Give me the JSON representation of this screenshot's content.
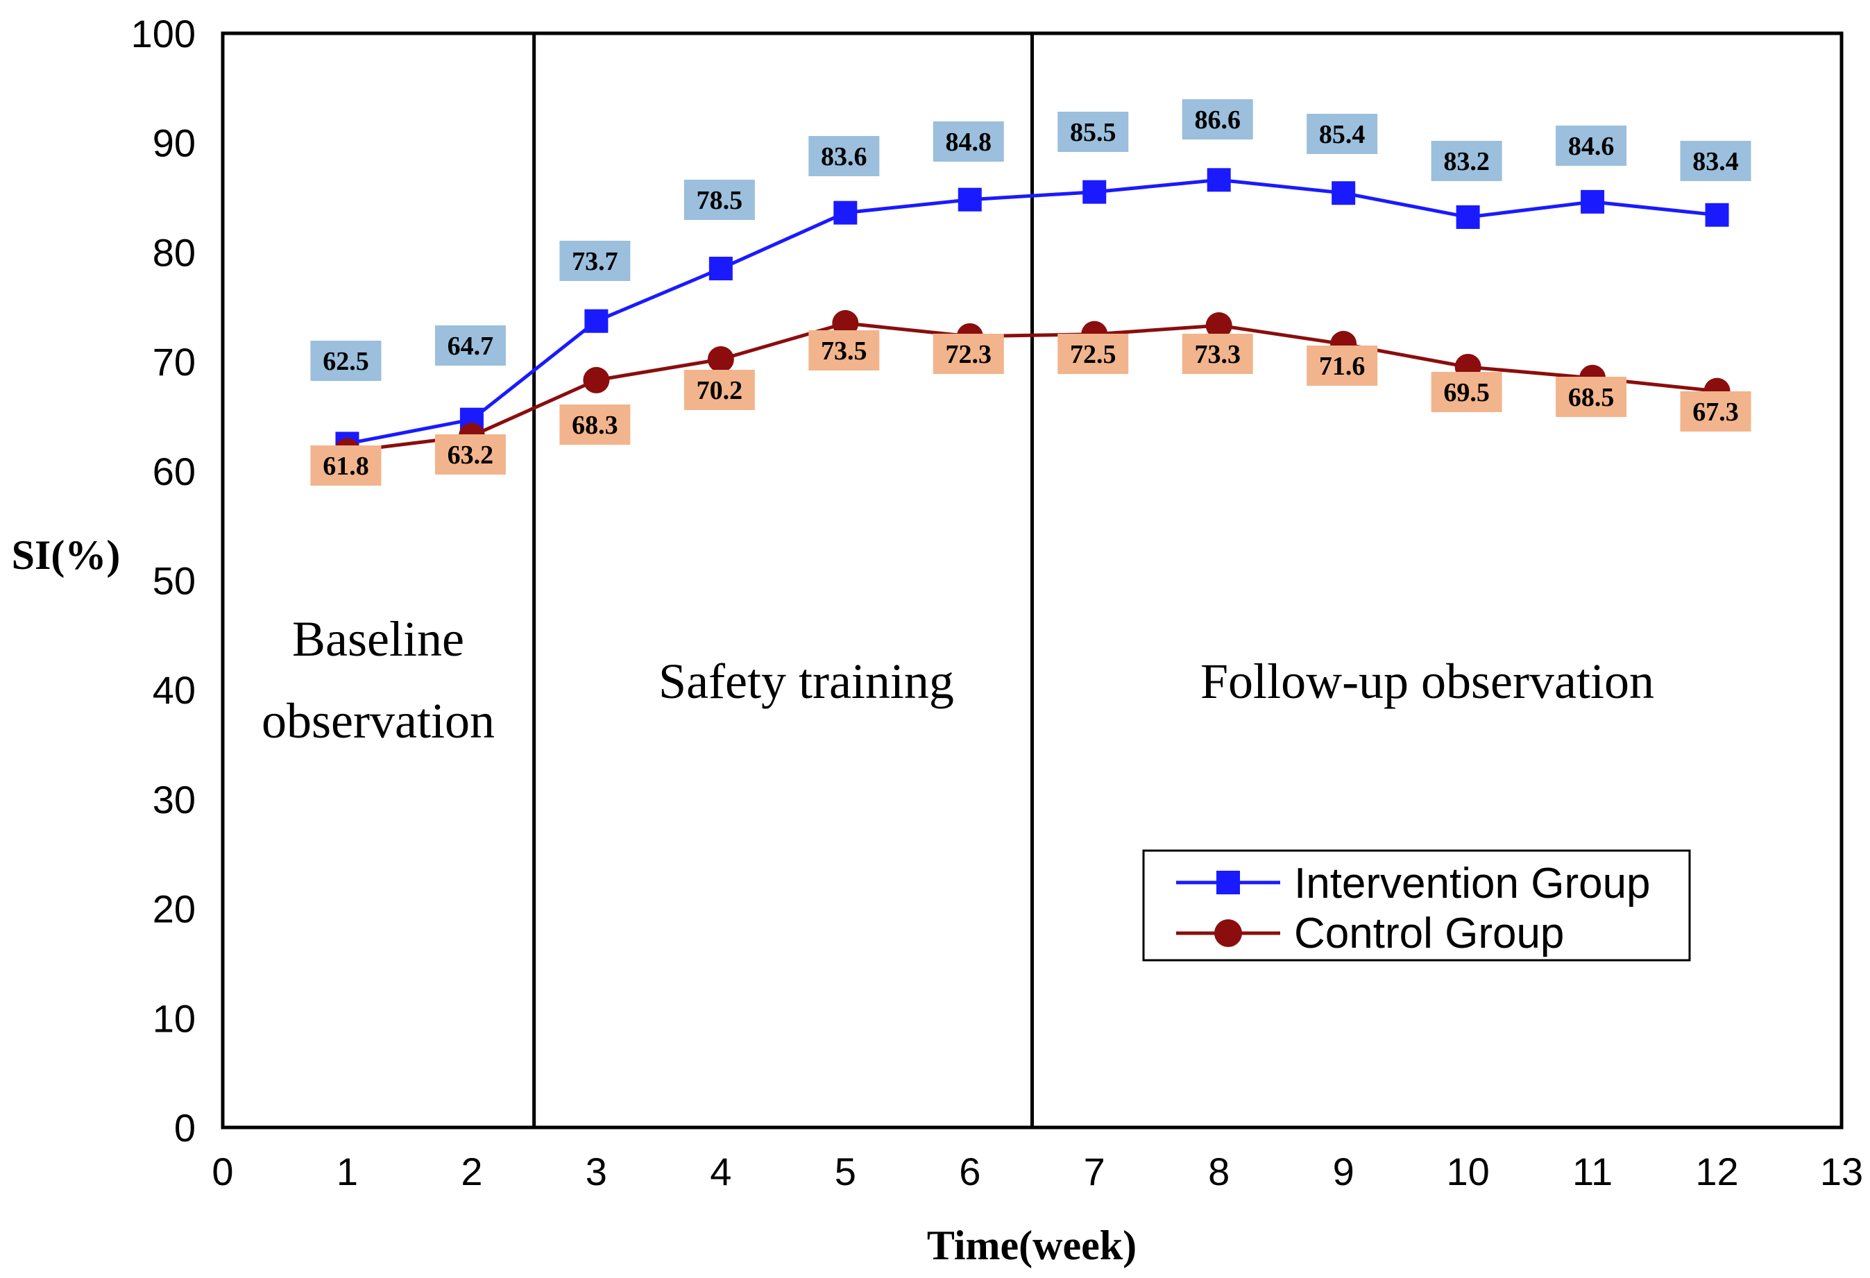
{
  "chart_data": {
    "type": "line",
    "title": "",
    "xlabel": "Time(week)",
    "ylabel": "SI(%)",
    "xlim": [
      0,
      13
    ],
    "ylim": [
      0,
      100
    ],
    "x_ticks": [
      0,
      1,
      2,
      3,
      4,
      5,
      6,
      7,
      8,
      9,
      10,
      11,
      12,
      13
    ],
    "y_ticks": [
      0,
      10,
      20,
      30,
      40,
      50,
      60,
      70,
      80,
      90,
      100
    ],
    "x": [
      1,
      2,
      3,
      4,
      5,
      6,
      7,
      8,
      9,
      10,
      11,
      12
    ],
    "series": [
      {
        "name": "Intervention Group",
        "color": "#1a1aff",
        "label_bg": "#9bbfdc",
        "marker": "square",
        "values": [
          62.5,
          64.7,
          73.7,
          78.5,
          83.6,
          84.8,
          85.5,
          86.6,
          85.4,
          83.2,
          84.6,
          83.4
        ],
        "labels": [
          "62.5",
          "64.7",
          "73.7",
          "78.5",
          "83.6",
          "84.8",
          "85.5",
          "86.6",
          "85.4",
          "83.2",
          "84.6",
          "83.4"
        ]
      },
      {
        "name": "Control Group",
        "color": "#8b0d0d",
        "label_bg": "#f2b48c",
        "marker": "circle",
        "values": [
          61.8,
          63.2,
          68.3,
          70.2,
          73.5,
          72.3,
          72.5,
          73.3,
          71.6,
          69.5,
          68.5,
          67.3
        ],
        "labels": [
          "61.8",
          "63.2",
          "68.3",
          "70.2",
          "73.5",
          "72.3",
          "72.5",
          "73.3",
          "71.6",
          "69.5",
          "68.5",
          "67.3"
        ]
      }
    ],
    "phase_dividers": [
      2.5,
      6.5
    ],
    "phases": [
      {
        "lines": [
          "Baseline",
          "observation"
        ]
      },
      {
        "lines": [
          "Safety training"
        ]
      },
      {
        "lines": [
          "Follow-up observation"
        ]
      }
    ],
    "legend_position": "bottom-right",
    "grid": false
  }
}
